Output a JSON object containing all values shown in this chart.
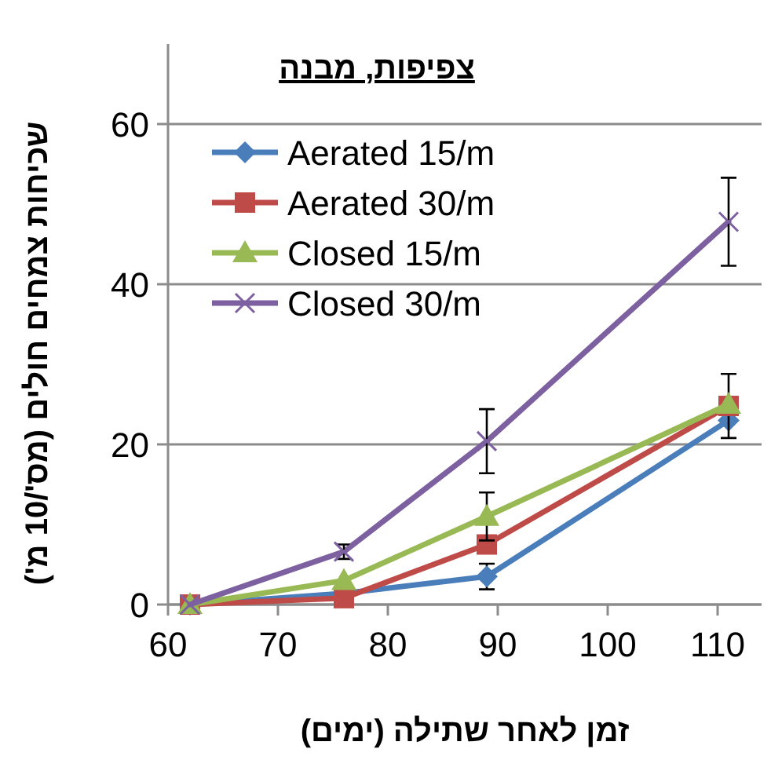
{
  "chart_data": {
    "type": "line",
    "title": "צפיפות, מבנה",
    "xlabel": "זמן לאחר שתילה (ימים)",
    "ylabel": "שכיחות צמחים חולים (מס'/10 מ')",
    "x": [
      62,
      76,
      89,
      111
    ],
    "series": [
      {
        "name": "Aerated 15/m",
        "color": "#4a7ebb",
        "marker": "diamond",
        "values": [
          0,
          1.4,
          3.5,
          23
        ],
        "errors": [
          null,
          null,
          1.6,
          null
        ]
      },
      {
        "name": "Aerated 30/m",
        "color": "#be4b48",
        "marker": "square",
        "values": [
          0,
          0.8,
          7.5,
          24.8
        ],
        "errors": [
          null,
          null,
          null,
          4
        ]
      },
      {
        "name": "Closed 15/m",
        "color": "#98b954",
        "marker": "triangle",
        "values": [
          0,
          3,
          11,
          25
        ],
        "errors": [
          null,
          null,
          3,
          null
        ]
      },
      {
        "name": "Closed 30/m",
        "color": "#7d60a0",
        "marker": "cross",
        "values": [
          0,
          6.6,
          20.4,
          47.8
        ],
        "errors": [
          null,
          0.9,
          4,
          5.5
        ]
      }
    ],
    "xlim": [
      60,
      114
    ],
    "ylim": [
      0,
      70
    ],
    "xticks": [
      60,
      70,
      80,
      90,
      100,
      110
    ],
    "yticks": [
      0,
      20,
      40,
      60
    ],
    "grid": "y",
    "legend": "top left",
    "line_style": "solid"
  }
}
